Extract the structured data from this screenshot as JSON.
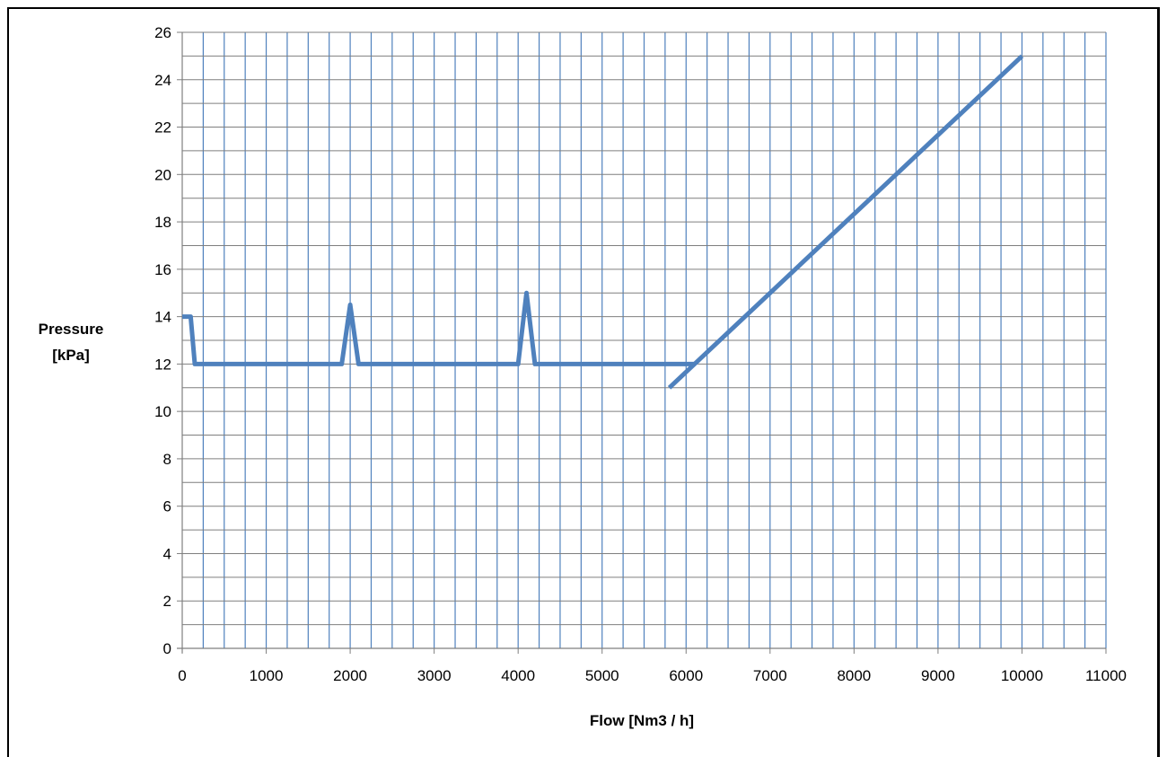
{
  "chart_data": {
    "type": "line",
    "title": "",
    "xlabel": "Flow [Nm3 / h]",
    "ylabel": "Pressure [kPa]",
    "xlim": [
      0,
      11000
    ],
    "ylim": [
      0,
      26
    ],
    "x_ticks": [
      0,
      1000,
      2000,
      3000,
      4000,
      5000,
      6000,
      7000,
      8000,
      9000,
      10000,
      11000
    ],
    "y_ticks": [
      0,
      2,
      4,
      6,
      8,
      10,
      12,
      14,
      16,
      18,
      20,
      22,
      24,
      26
    ],
    "grid": true,
    "legend": "none",
    "colors": {
      "line": "#4F81BD",
      "grid_vertical": "#4F81BD",
      "grid_horizontal": "#7F7F7F",
      "axis": "#7F7F7F"
    },
    "series": [
      {
        "values": [
          [
            0,
            14
          ],
          [
            100,
            14
          ],
          [
            150,
            12
          ],
          [
            1900,
            12
          ],
          [
            2000,
            14.5
          ],
          [
            2100,
            12
          ],
          [
            4000,
            12
          ],
          [
            4100,
            15
          ],
          [
            4200,
            12
          ],
          [
            6100,
            12
          ]
        ]
      },
      {
        "values": [
          [
            5800,
            11
          ],
          [
            10000,
            25
          ]
        ]
      }
    ]
  }
}
